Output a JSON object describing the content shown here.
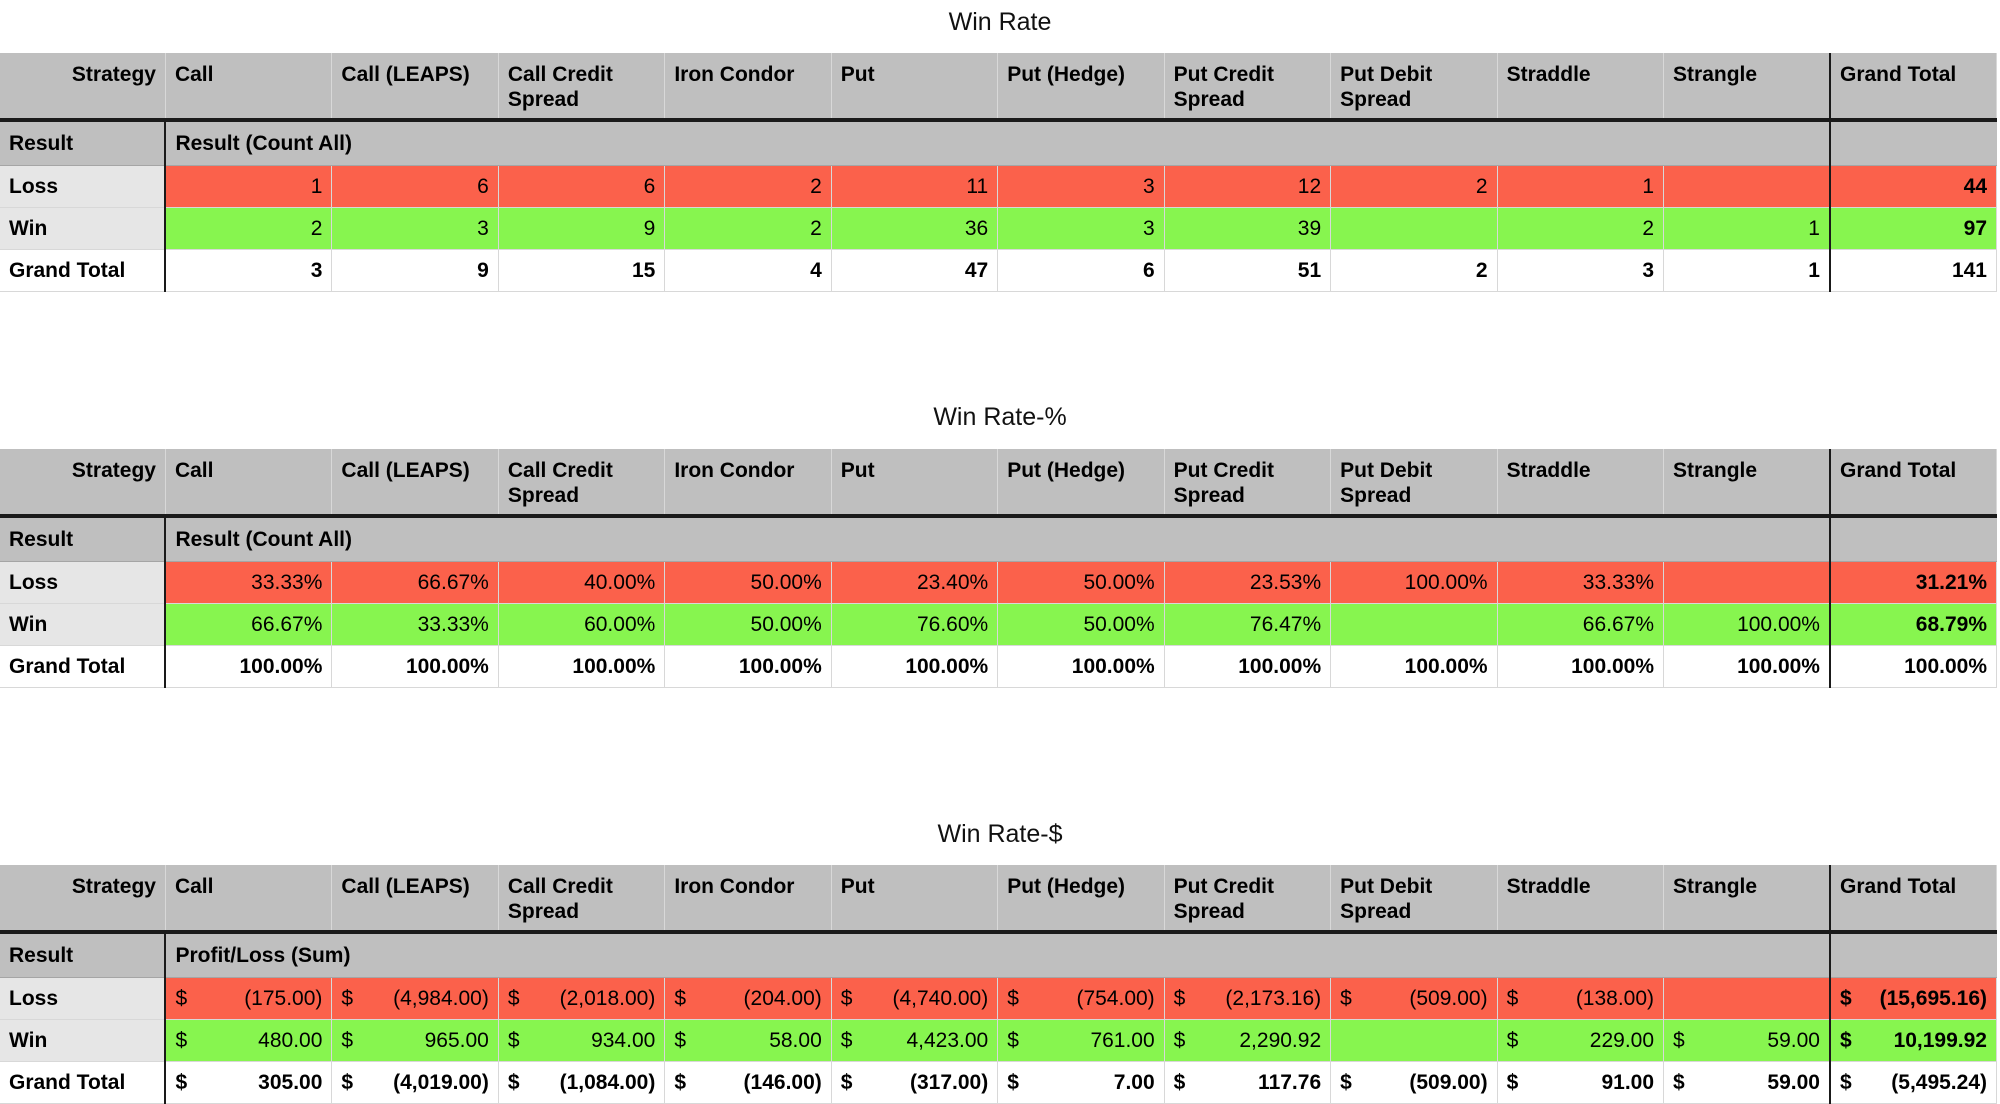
{
  "columns": [
    "Call",
    "Call (LEAPS)",
    "Call Credit Spread",
    "Iron Condor",
    "Put",
    "Put (Hedge)",
    "Put Credit Spread",
    "Put Debit Spread",
    "Straddle",
    "Strangle",
    "Grand Total"
  ],
  "corner_label": "Strategy",
  "row_field_label": "Result",
  "tables": [
    {
      "title": "Win Rate",
      "measure": "Result (Count All)",
      "rows": [
        {
          "label": "Loss",
          "kind": "loss",
          "values": [
            "1",
            "6",
            "6",
            "2",
            "11",
            "3",
            "12",
            "2",
            "1",
            "",
            "44"
          ]
        },
        {
          "label": "Win",
          "kind": "win",
          "values": [
            "2",
            "3",
            "9",
            "2",
            "36",
            "3",
            "39",
            "",
            "2",
            "1",
            "97"
          ]
        },
        {
          "label": "Grand Total",
          "kind": "total",
          "values": [
            "3",
            "9",
            "15",
            "4",
            "47",
            "6",
            "51",
            "2",
            "3",
            "1",
            "141"
          ]
        }
      ]
    },
    {
      "title": "Win Rate-%",
      "measure": "Result (Count All)",
      "rows": [
        {
          "label": "Loss",
          "kind": "loss",
          "values": [
            "33.33%",
            "66.67%",
            "40.00%",
            "50.00%",
            "23.40%",
            "50.00%",
            "23.53%",
            "100.00%",
            "33.33%",
            "",
            "31.21%"
          ]
        },
        {
          "label": "Win",
          "kind": "win",
          "values": [
            "66.67%",
            "33.33%",
            "60.00%",
            "50.00%",
            "76.60%",
            "50.00%",
            "76.47%",
            "",
            "66.67%",
            "100.00%",
            "68.79%"
          ]
        },
        {
          "label": "Grand Total",
          "kind": "total",
          "values": [
            "100.00%",
            "100.00%",
            "100.00%",
            "100.00%",
            "100.00%",
            "100.00%",
            "100.00%",
            "100.00%",
            "100.00%",
            "100.00%",
            "100.00%"
          ]
        }
      ]
    },
    {
      "title": "Win Rate-$",
      "measure": "Profit/Loss (Sum)",
      "currency": "$",
      "rows": [
        {
          "label": "Loss",
          "kind": "loss",
          "values": [
            "(175.00)",
            "(4,984.00)",
            "(2,018.00)",
            "(204.00)",
            "(4,740.00)",
            "(754.00)",
            "(2,173.16)",
            "(509.00)",
            "(138.00)",
            "",
            "(15,695.16)"
          ]
        },
        {
          "label": "Win",
          "kind": "win",
          "values": [
            "480.00",
            "965.00",
            "934.00",
            "58.00",
            "4,423.00",
            "761.00",
            "2,290.92",
            "",
            "229.00",
            "59.00",
            "10,199.92"
          ]
        },
        {
          "label": "Grand Total",
          "kind": "total",
          "values": [
            "305.00",
            "(4,019.00)",
            "(1,084.00)",
            "(146.00)",
            "(317.00)",
            "7.00",
            "117.76",
            "(509.00)",
            "91.00",
            "59.00",
            "(5,495.24)"
          ]
        }
      ]
    }
  ],
  "colors": {
    "loss": "#fb614b",
    "win": "#87f54f",
    "header": "#bfbfbf"
  }
}
